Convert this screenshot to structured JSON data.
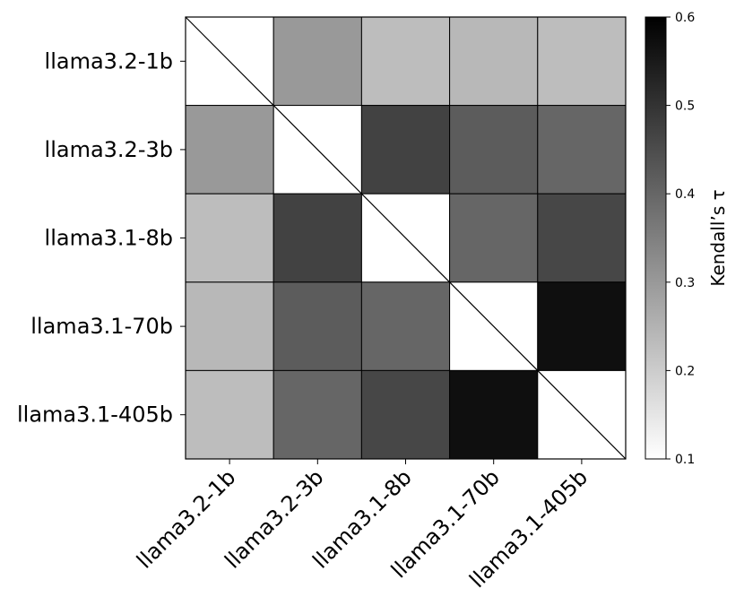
{
  "chart_data": {
    "type": "heatmap",
    "rows": [
      "llama3.2-1b",
      "llama3.2-3b",
      "llama3.1-8b",
      "llama3.1-70b",
      "llama3.1-405b"
    ],
    "cols": [
      "llama3.2-1b",
      "llama3.2-3b",
      "llama3.1-8b",
      "llama3.1-70b",
      "llama3.1-405b"
    ],
    "values": [
      [
        null,
        0.3,
        0.23,
        0.24,
        0.23
      ],
      [
        0.3,
        null,
        0.47,
        0.42,
        0.4
      ],
      [
        0.23,
        0.47,
        null,
        0.4,
        0.46
      ],
      [
        0.24,
        0.42,
        0.4,
        null,
        0.57
      ],
      [
        0.23,
        0.4,
        0.46,
        0.57,
        null
      ]
    ],
    "diagonal": "blank with diagonal line",
    "colorbar": {
      "label": "Kendall’s τ",
      "min": 0.1,
      "max": 0.6,
      "ticks": [
        "0.1",
        "0.2",
        "0.3",
        "0.4",
        "0.5",
        "0.6"
      ],
      "colormap": "Greys",
      "low_color": "#ffffff",
      "high_color": "#000000"
    },
    "title": "",
    "xlabel": "",
    "ylabel": "",
    "grid": false
  }
}
